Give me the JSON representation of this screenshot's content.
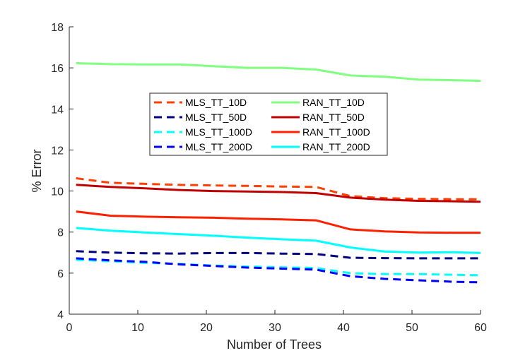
{
  "chart_data": {
    "type": "line",
    "title": "",
    "xlabel": "Number of Trees",
    "ylabel": "% Error",
    "xlim": [
      0,
      60
    ],
    "ylim": [
      4,
      18
    ],
    "xticks": [
      0,
      10,
      20,
      30,
      40,
      50,
      60
    ],
    "yticks": [
      4,
      6,
      8,
      10,
      12,
      14,
      16,
      18
    ],
    "grid": false,
    "legend_placement": "center-left",
    "legend_columns": 2,
    "x": [
      1,
      6,
      11,
      16,
      21,
      26,
      31,
      36,
      41,
      46,
      51,
      56,
      60
    ],
    "series": [
      {
        "name": "MLS_TT_10D",
        "style": "dashed",
        "color": "#ff4000",
        "values": [
          10.62,
          10.4,
          10.35,
          10.3,
          10.27,
          10.25,
          10.22,
          10.2,
          9.75,
          9.65,
          9.62,
          9.6,
          9.6
        ]
      },
      {
        "name": "MLS_TT_50D",
        "style": "dashed",
        "color": "#000080",
        "values": [
          7.07,
          7.0,
          6.97,
          6.95,
          6.98,
          6.98,
          6.95,
          6.93,
          6.75,
          6.73,
          6.72,
          6.72,
          6.72
        ]
      },
      {
        "name": "MLS_TT_100D",
        "style": "dashed",
        "color": "#00ffff",
        "values": [
          6.65,
          6.58,
          6.5,
          6.45,
          6.37,
          6.32,
          6.28,
          6.25,
          6.0,
          5.95,
          5.95,
          5.92,
          5.9
        ]
      },
      {
        "name": "MLS_TT_200D",
        "style": "dashed",
        "color": "#0000ff",
        "values": [
          6.72,
          6.62,
          6.55,
          6.43,
          6.35,
          6.27,
          6.22,
          6.17,
          5.85,
          5.72,
          5.65,
          5.58,
          5.55
        ]
      },
      {
        "name": "RAN_TT_10D",
        "style": "solid",
        "color": "#80ff80",
        "values": [
          16.23,
          16.18,
          16.17,
          16.17,
          16.08,
          16.0,
          16.0,
          15.92,
          15.63,
          15.57,
          15.43,
          15.4,
          15.37
        ]
      },
      {
        "name": "RAN_TT_50D",
        "style": "solid",
        "color": "#c00000",
        "values": [
          10.3,
          10.2,
          10.13,
          10.05,
          10.0,
          9.98,
          9.95,
          9.9,
          9.68,
          9.58,
          9.52,
          9.5,
          9.48
        ]
      },
      {
        "name": "RAN_TT_100D",
        "style": "solid",
        "color": "#ff2000",
        "values": [
          9.0,
          8.8,
          8.75,
          8.72,
          8.7,
          8.65,
          8.62,
          8.57,
          8.13,
          8.03,
          7.98,
          7.97,
          7.97
        ]
      },
      {
        "name": "RAN_TT_200D",
        "style": "solid",
        "color": "#00ffff",
        "values": [
          8.2,
          8.07,
          7.98,
          7.9,
          7.82,
          7.73,
          7.65,
          7.58,
          7.25,
          7.05,
          7.0,
          7.02,
          6.98
        ]
      }
    ]
  }
}
